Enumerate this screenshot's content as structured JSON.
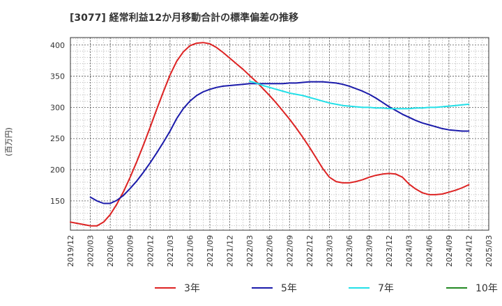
{
  "chart_data": {
    "type": "line",
    "title": "[3077]  経常利益12か月移動合計の標準偏差の推移",
    "ylabel": "(百万円)",
    "xlabel": "",
    "ylim": [
      103,
      412
    ],
    "yticks": [
      150,
      200,
      250,
      300,
      350,
      400
    ],
    "x_ticks": [
      "2019/12",
      "2020/03",
      "2020/06",
      "2020/09",
      "2020/12",
      "2021/03",
      "2021/06",
      "2021/09",
      "2021/12",
      "2022/03",
      "2022/06",
      "2022/09",
      "2022/12",
      "2023/03",
      "2023/06",
      "2023/09",
      "2023/12",
      "2024/03",
      "2024/06",
      "2024/09",
      "2024/12",
      "2025/03"
    ],
    "grid": true,
    "legend_position": "bottom",
    "series": [
      {
        "name": "3年",
        "color": "#dd2222",
        "x": [
          "2019/12",
          "2020/01",
          "2020/02",
          "2020/03",
          "2020/04",
          "2020/05",
          "2020/06",
          "2020/07",
          "2020/08",
          "2020/09",
          "2020/10",
          "2020/11",
          "2020/12",
          "2021/01",
          "2021/02",
          "2021/03",
          "2021/04",
          "2021/05",
          "2021/06",
          "2021/07",
          "2021/08",
          "2021/09",
          "2021/10",
          "2021/11",
          "2021/12",
          "2022/01",
          "2022/02",
          "2022/03",
          "2022/04",
          "2022/05",
          "2022/06",
          "2022/07",
          "2022/08",
          "2022/09",
          "2022/10",
          "2022/11",
          "2022/12",
          "2023/01",
          "2023/02",
          "2023/03",
          "2023/04",
          "2023/05",
          "2023/06",
          "2023/07",
          "2023/08",
          "2023/09",
          "2023/10",
          "2023/11",
          "2023/12",
          "2024/01",
          "2024/02",
          "2024/03",
          "2024/04",
          "2024/05",
          "2024/06",
          "2024/07",
          "2024/08",
          "2024/09",
          "2024/10",
          "2024/11",
          "2024/12"
        ],
        "y": [
          116,
          114,
          112,
          110,
          110,
          116,
          128,
          145,
          165,
          188,
          213,
          240,
          268,
          297,
          325,
          352,
          374,
          389,
          399,
          403,
          404,
          402,
          396,
          388,
          379,
          370,
          361,
          351,
          341,
          330,
          319,
          307,
          294,
          281,
          267,
          252,
          236,
          219,
          202,
          188,
          181,
          179,
          179,
          181,
          184,
          188,
          191,
          193,
          194,
          193,
          188,
          177,
          169,
          163,
          160,
          160,
          161,
          164,
          167,
          171,
          176
        ]
      },
      {
        "name": "5年",
        "color": "#1a1aaa",
        "x": [
          "2020/03",
          "2020/04",
          "2020/05",
          "2020/06",
          "2020/07",
          "2020/08",
          "2020/09",
          "2020/10",
          "2020/11",
          "2020/12",
          "2021/01",
          "2021/02",
          "2021/03",
          "2021/04",
          "2021/05",
          "2021/06",
          "2021/07",
          "2021/08",
          "2021/09",
          "2021/10",
          "2021/11",
          "2021/12",
          "2022/01",
          "2022/02",
          "2022/03",
          "2022/04",
          "2022/05",
          "2022/06",
          "2022/07",
          "2022/08",
          "2022/09",
          "2022/10",
          "2022/11",
          "2022/12",
          "2023/01",
          "2023/02",
          "2023/03",
          "2023/04",
          "2023/05",
          "2023/06",
          "2023/07",
          "2023/08",
          "2023/09",
          "2023/10",
          "2023/11",
          "2023/12",
          "2024/01",
          "2024/02",
          "2024/03",
          "2024/04",
          "2024/05",
          "2024/06",
          "2024/07",
          "2024/08",
          "2024/09",
          "2024/10",
          "2024/11",
          "2024/12"
        ],
        "y": [
          156,
          150,
          146,
          146,
          151,
          159,
          170,
          182,
          196,
          211,
          227,
          244,
          262,
          282,
          298,
          310,
          319,
          325,
          329,
          332,
          334,
          335,
          336,
          337,
          338,
          338,
          338,
          338,
          338,
          338,
          339,
          339,
          340,
          341,
          341,
          341,
          340,
          339,
          337,
          334,
          330,
          326,
          321,
          315,
          308,
          301,
          295,
          289,
          284,
          279,
          275,
          272,
          269,
          266,
          264,
          263,
          262,
          262
        ]
      },
      {
        "name": "7年",
        "color": "#22e0e8",
        "x": [
          "2022/03",
          "2022/04",
          "2022/05",
          "2022/06",
          "2022/07",
          "2022/08",
          "2022/09",
          "2022/10",
          "2022/11",
          "2022/12",
          "2023/01",
          "2023/02",
          "2023/03",
          "2023/04",
          "2023/05",
          "2023/06",
          "2023/07",
          "2023/08",
          "2023/09",
          "2023/10",
          "2023/11",
          "2023/12",
          "2024/01",
          "2024/02",
          "2024/03",
          "2024/04",
          "2024/05",
          "2024/06",
          "2024/07",
          "2024/08",
          "2024/09",
          "2024/10",
          "2024/11",
          "2024/12"
        ],
        "y": [
          342,
          339,
          335,
          332,
          329,
          326,
          323,
          321,
          319,
          316,
          313,
          310,
          307,
          305,
          303,
          302,
          301,
          300,
          300,
          299,
          299,
          298,
          298,
          298,
          298,
          299,
          299,
          300,
          300,
          301,
          302,
          303,
          304,
          305
        ]
      },
      {
        "name": "10年",
        "color": "#228822",
        "x": [],
        "y": []
      }
    ]
  }
}
